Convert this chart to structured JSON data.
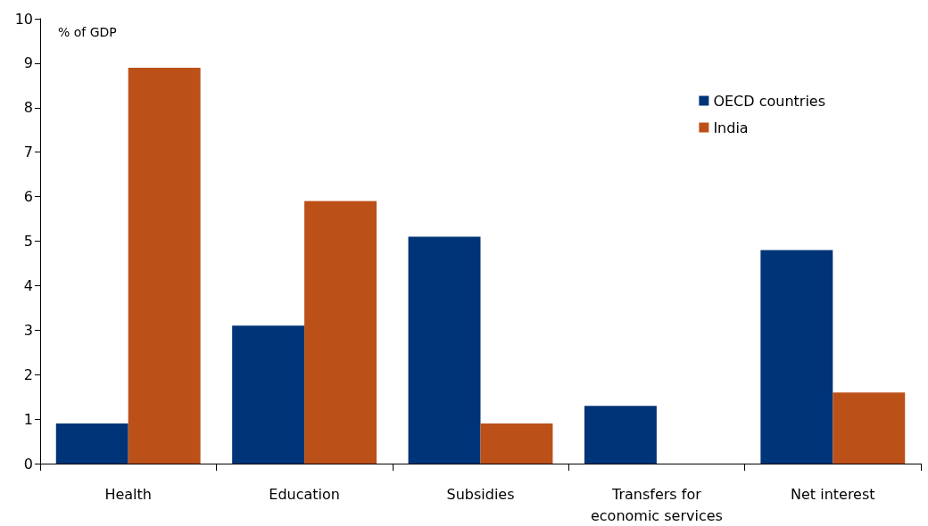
{
  "chart_data": {
    "type": "bar",
    "ylabel": "% of GDP",
    "categories": [
      "Health",
      "Education",
      "Subsidies",
      "Transfers for\neconomic services",
      "Net interest"
    ],
    "series": [
      {
        "name": "OECD countries",
        "color": "#003478",
        "values": [
          0.9,
          3.1,
          5.1,
          1.3,
          4.8
        ]
      },
      {
        "name": "India",
        "color": "#bb5019",
        "values": [
          8.9,
          5.9,
          0.9,
          null,
          1.6
        ]
      }
    ],
    "ylim": [
      0,
      10
    ],
    "yticks": [
      0,
      1,
      2,
      3,
      4,
      5,
      6,
      7,
      8,
      9,
      10
    ],
    "grid": false,
    "legend": "top right"
  }
}
